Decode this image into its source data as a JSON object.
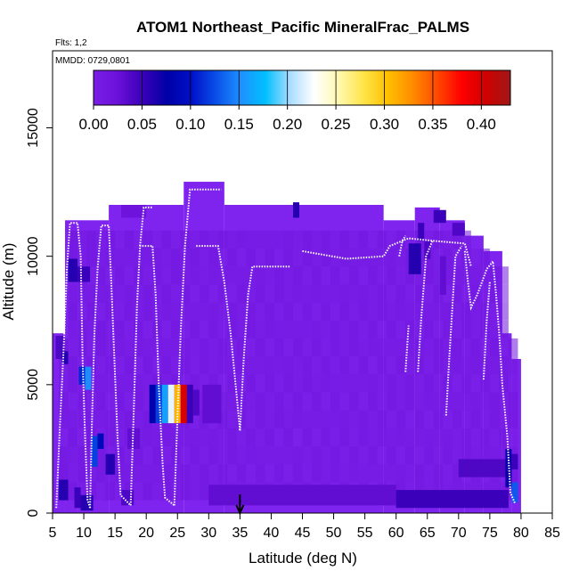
{
  "chart_data": {
    "type": "heatmap",
    "title": "ATOM1 Northeast_Pacific MineralFrac_PALMS",
    "flights_label": "Flts: 1,2",
    "date_label": "MMDD: 0729,0801",
    "xlabel": "Latitude (deg N)",
    "ylabel": "Altitude (m)",
    "xlim": [
      5,
      85
    ],
    "ylim": [
      0,
      18000
    ],
    "x_ticks": [
      5,
      10,
      15,
      20,
      25,
      30,
      35,
      40,
      45,
      50,
      55,
      60,
      65,
      70,
      75,
      80,
      85
    ],
    "y_ticks": [
      0,
      5000,
      10000,
      15000
    ],
    "colorbar": {
      "min": 0.0,
      "max": 0.43,
      "ticks": [
        "0.00",
        "0.05",
        "0.10",
        "0.15",
        "0.20",
        "0.25",
        "0.30",
        "0.35",
        "0.40"
      ],
      "colors": [
        "#7a1fe6",
        "#6a10d8",
        "#3a00b8",
        "#0000a6",
        "#0010c8",
        "#0a50e8",
        "#1f90ff",
        "#00bfff",
        "#a8dcff",
        "#ffffff",
        "#fff8b0",
        "#ffe54a",
        "#ffc000",
        "#ff8c00",
        "#ff4a00",
        "#ff0000",
        "#d00000",
        "#a01818"
      ]
    },
    "marker_latitude": 35,
    "background_color": "#7f24ee",
    "columns": [
      {
        "x0": 5,
        "x1": 7,
        "top": 7000
      },
      {
        "x0": 7,
        "x1": 9,
        "top": 11400
      },
      {
        "x0": 9,
        "x1": 14,
        "top": 11400
      },
      {
        "x0": 14,
        "x1": 26,
        "top": 12000
      },
      {
        "x0": 26,
        "x1": 32.5,
        "top": 12900
      },
      {
        "x0": 32.5,
        "x1": 45,
        "top": 12000
      },
      {
        "x0": 45,
        "x1": 58,
        "top": 12000
      },
      {
        "x0": 58,
        "x1": 63,
        "top": 11400
      },
      {
        "x0": 63,
        "x1": 67,
        "top": 11900
      },
      {
        "x0": 67,
        "x1": 71,
        "top": 11400
      },
      {
        "x0": 71,
        "x1": 74,
        "top": 10800
      },
      {
        "x0": 74,
        "x1": 77,
        "top": 10200
      },
      {
        "x0": 77,
        "x1": 78.5,
        "top": 7000
      },
      {
        "x0": 78.5,
        "x1": 80,
        "top": 6000
      }
    ],
    "cells": [
      {
        "x": 22.5,
        "w": 1,
        "y": 3500,
        "h": 1500,
        "v": 0.16
      },
      {
        "x": 23.5,
        "w": 1,
        "y": 3500,
        "h": 1500,
        "v": 0.22
      },
      {
        "x": 24.5,
        "w": 1,
        "y": 3500,
        "h": 1500,
        "v": 0.31
      },
      {
        "x": 25.5,
        "w": 1,
        "y": 3500,
        "h": 1500,
        "v": 0.4
      },
      {
        "x": 21.5,
        "w": 1,
        "y": 3500,
        "h": 1500,
        "v": 0.12
      },
      {
        "x": 20.5,
        "w": 1,
        "y": 3500,
        "h": 1500,
        "v": 0.08
      },
      {
        "x": 26.5,
        "w": 1,
        "y": 3500,
        "h": 1500,
        "v": 0.05
      },
      {
        "x": 27.5,
        "w": 1,
        "y": 3800,
        "h": 1000,
        "v": 0.04
      },
      {
        "x": 29,
        "w": 3,
        "y": 3500,
        "h": 1500,
        "v": 0.03
      },
      {
        "x": 10.2,
        "w": 1,
        "y": 4800,
        "h": 900,
        "v": 0.15
      },
      {
        "x": 9.2,
        "w": 1,
        "y": 5000,
        "h": 700,
        "v": 0.11
      },
      {
        "x": 11.2,
        "w": 1,
        "y": 1800,
        "h": 1200,
        "v": 0.12
      },
      {
        "x": 12.2,
        "w": 1,
        "y": 2500,
        "h": 600,
        "v": 0.09
      },
      {
        "x": 13.5,
        "w": 1.5,
        "y": 1500,
        "h": 800,
        "v": 0.06
      },
      {
        "x": 8.5,
        "w": 1,
        "y": 200,
        "h": 800,
        "v": 0.05
      },
      {
        "x": 9.5,
        "w": 2,
        "y": 100,
        "h": 600,
        "v": 0.06
      },
      {
        "x": 6,
        "w": 1.5,
        "y": 500,
        "h": 800,
        "v": 0.06
      },
      {
        "x": 7.5,
        "w": 1.5,
        "y": 9000,
        "h": 900,
        "v": 0.06
      },
      {
        "x": 9,
        "w": 2,
        "y": 9000,
        "h": 600,
        "v": 0.05
      },
      {
        "x": 16,
        "w": 2,
        "y": 300,
        "h": 600,
        "v": 0.04
      },
      {
        "x": 30,
        "w": 30,
        "y": 300,
        "h": 800,
        "v": 0.03
      },
      {
        "x": 60,
        "w": 18,
        "y": 200,
        "h": 700,
        "v": 0.05
      },
      {
        "x": 70,
        "w": 8,
        "y": 1400,
        "h": 700,
        "v": 0.04
      },
      {
        "x": 77.5,
        "w": 1,
        "y": 1000,
        "h": 1500,
        "v": 0.07
      },
      {
        "x": 78.5,
        "w": 1,
        "y": 400,
        "h": 800,
        "v": 0.13
      },
      {
        "x": 78.5,
        "w": 1,
        "y": 1700,
        "h": 600,
        "v": 0.05
      },
      {
        "x": 62,
        "w": 2,
        "y": 9300,
        "h": 1200,
        "v": 0.06
      },
      {
        "x": 63.5,
        "w": 1,
        "y": 10600,
        "h": 700,
        "v": 0.05
      },
      {
        "x": 64.5,
        "w": 1,
        "y": 9900,
        "h": 700,
        "v": 0.04
      },
      {
        "x": 66,
        "w": 2,
        "y": 11300,
        "h": 500,
        "v": 0.05
      },
      {
        "x": 69,
        "w": 2,
        "y": 10800,
        "h": 500,
        "v": 0.04
      },
      {
        "x": 67,
        "w": 1,
        "y": 8500,
        "h": 1500,
        "v": 0.03
      },
      {
        "x": 43.5,
        "w": 1,
        "y": 11500,
        "h": 600,
        "v": 0.06
      },
      {
        "x": 16,
        "w": 4,
        "y": 11500,
        "h": 500,
        "v": 0.02
      },
      {
        "x": 17,
        "w": 2,
        "y": 2500,
        "h": 800,
        "v": 0.03
      },
      {
        "x": 5.5,
        "w": 1.5,
        "y": 6000,
        "h": 900,
        "v": 0.04
      },
      {
        "x": 6.5,
        "w": 1,
        "y": 5800,
        "h": 500,
        "v": 0.06
      }
    ],
    "tracks": [
      [
        [
          5.6,
          200
        ],
        [
          6.2,
          3500
        ],
        [
          6.8,
          6500
        ],
        [
          7.3,
          9500
        ],
        [
          7.8,
          11300
        ],
        [
          9,
          11300
        ],
        [
          9.5,
          10000
        ],
        [
          9.8,
          6000
        ],
        [
          10.2,
          3000
        ],
        [
          10.6,
          500
        ],
        [
          11,
          200
        ]
      ],
      [
        [
          11,
          200
        ],
        [
          11.3,
          3500
        ],
        [
          11.7,
          7000
        ],
        [
          12.2,
          9500
        ],
        [
          12.8,
          11200
        ],
        [
          14,
          11200
        ],
        [
          14.4,
          9000
        ],
        [
          14.9,
          6000
        ],
        [
          15.4,
          3000
        ],
        [
          15.9,
          700
        ],
        [
          17.5,
          300
        ]
      ],
      [
        [
          17.5,
          300
        ],
        [
          18,
          4000
        ],
        [
          18.5,
          8000
        ],
        [
          19,
          10400
        ],
        [
          21,
          10400
        ],
        [
          21.5,
          8500
        ],
        [
          22,
          5000
        ],
        [
          22.6,
          2000
        ],
        [
          23,
          600
        ],
        [
          24.5,
          300
        ]
      ],
      [
        [
          19,
          10400
        ],
        [
          19.6,
          11900
        ],
        [
          21,
          11900
        ]
      ],
      [
        [
          24.5,
          300
        ],
        [
          25,
          3800
        ],
        [
          25.5,
          7000
        ],
        [
          26.2,
          10400
        ],
        [
          27,
          12600
        ],
        [
          32,
          12600
        ]
      ],
      [
        [
          28,
          10400
        ],
        [
          31.5,
          10400
        ],
        [
          32.5,
          9000
        ],
        [
          33.5,
          7000
        ],
        [
          34.5,
          4500
        ],
        [
          35,
          3200
        ],
        [
          35.6,
          6000
        ],
        [
          36.3,
          8500
        ],
        [
          37,
          9600
        ],
        [
          43,
          9600
        ]
      ],
      [
        [
          45,
          10200
        ],
        [
          52,
          9900
        ],
        [
          58,
          10000
        ],
        [
          59,
          10400
        ],
        [
          62,
          10700
        ],
        [
          66,
          10600
        ],
        [
          71,
          10500
        ],
        [
          72,
          9600
        ]
      ],
      [
        [
          61.5,
          5500
        ],
        [
          62,
          7300
        ]
      ],
      [
        [
          63.5,
          5500
        ],
        [
          64,
          7500
        ],
        [
          64.8,
          10000
        ],
        [
          65.8,
          10600
        ]
      ],
      [
        [
          68,
          3800
        ],
        [
          68.5,
          6000
        ],
        [
          69,
          8000
        ],
        [
          69.5,
          10000
        ],
        [
          70.5,
          10400
        ]
      ],
      [
        [
          71,
          10200
        ],
        [
          71.5,
          9000
        ],
        [
          72,
          8000
        ],
        [
          73,
          8500
        ],
        [
          74.5,
          9500
        ],
        [
          75.5,
          9800
        ],
        [
          76,
          8500
        ],
        [
          76.5,
          7000
        ],
        [
          77,
          5000
        ],
        [
          77.8,
          3000
        ],
        [
          78.3,
          800
        ],
        [
          79,
          400
        ]
      ],
      [
        [
          74,
          5200
        ],
        [
          74.5,
          7500
        ],
        [
          75,
          9000
        ]
      ],
      [
        [
          60.5,
          10000
        ],
        [
          61,
          10600
        ],
        [
          61.5,
          10800
        ]
      ]
    ]
  }
}
